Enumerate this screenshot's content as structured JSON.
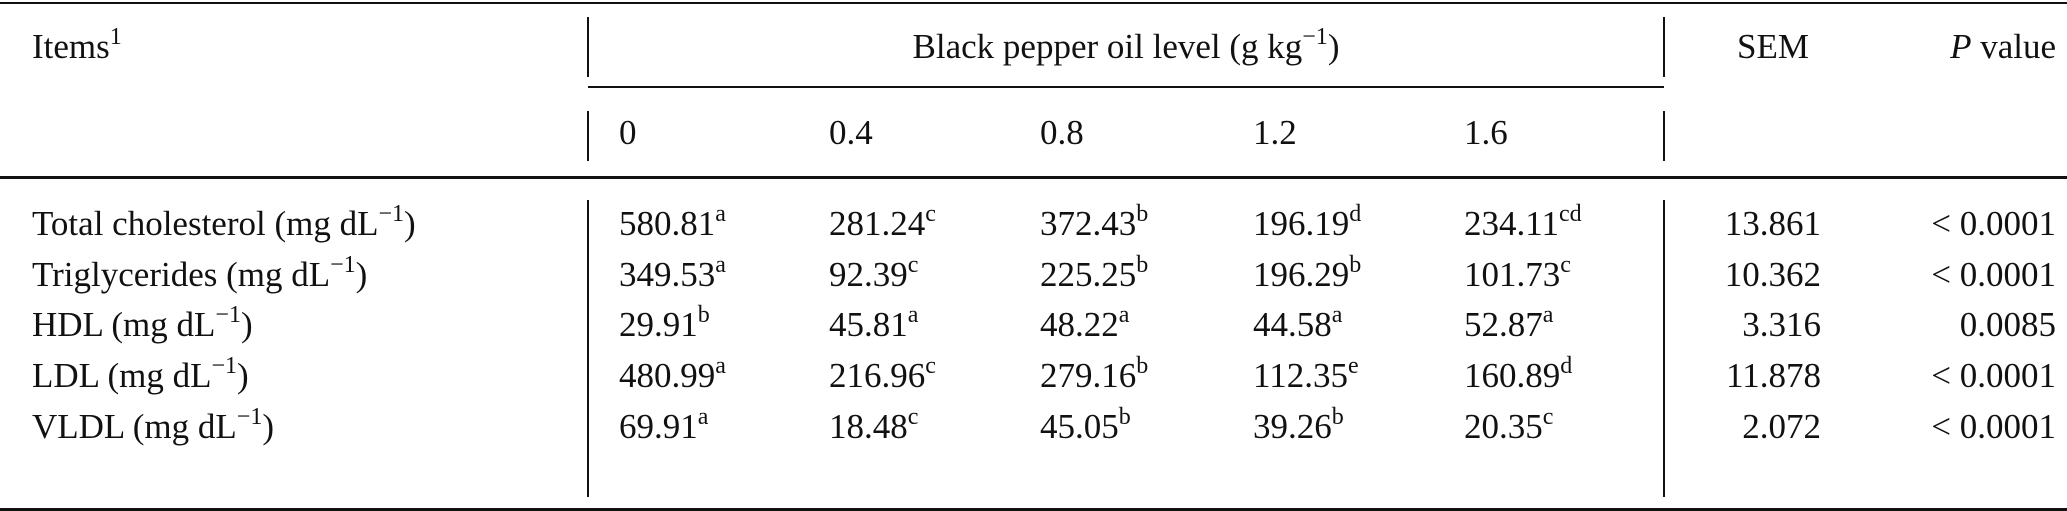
{
  "header": {
    "items_label": "Items",
    "items_footnote": "1",
    "group_label": "Black pepper oil level (g kg",
    "group_unit_exp": "−1",
    "group_close": ")",
    "sem_label": "SEM",
    "p_label_italic": "P",
    "p_label_rest": " value",
    "levels": [
      "0",
      "0.4",
      "0.8",
      "1.2",
      "1.6"
    ]
  },
  "rows": [
    {
      "item": "Total cholesterol (mg dL",
      "exp": "−1",
      "close": ")",
      "values": [
        {
          "v": "580.81",
          "s": "a"
        },
        {
          "v": "281.24",
          "s": "c"
        },
        {
          "v": "372.43",
          "s": "b"
        },
        {
          "v": "196.19",
          "s": "d"
        },
        {
          "v": "234.11",
          "s": "cd"
        }
      ],
      "sem": "13.861",
      "p": "< 0.0001"
    },
    {
      "item": "Triglycerides (mg dL",
      "exp": "−1",
      "close": ")",
      "values": [
        {
          "v": "349.53",
          "s": "a"
        },
        {
          "v": "92.39",
          "s": "c"
        },
        {
          "v": "225.25",
          "s": "b"
        },
        {
          "v": "196.29",
          "s": "b"
        },
        {
          "v": "101.73",
          "s": "c"
        }
      ],
      "sem": "10.362",
      "p": "< 0.0001"
    },
    {
      "item": "HDL (mg dL",
      "exp": "−1",
      "close": ")",
      "values": [
        {
          "v": "29.91",
          "s": "b"
        },
        {
          "v": "45.81",
          "s": "a"
        },
        {
          "v": "48.22",
          "s": "a"
        },
        {
          "v": "44.58",
          "s": "a"
        },
        {
          "v": "52.87",
          "s": "a"
        }
      ],
      "sem": "3.316",
      "p": "0.0085"
    },
    {
      "item": "LDL (mg dL",
      "exp": "−1",
      "close": ")",
      "values": [
        {
          "v": "480.99",
          "s": "a"
        },
        {
          "v": "216.96",
          "s": "c"
        },
        {
          "v": "279.16",
          "s": "b"
        },
        {
          "v": "112.35",
          "s": "e"
        },
        {
          "v": "160.89",
          "s": "d"
        }
      ],
      "sem": "11.878",
      "p": "< 0.0001"
    },
    {
      "item": "VLDL (mg dL",
      "exp": "−1",
      "close": ")",
      "values": [
        {
          "v": "69.91",
          "s": "a"
        },
        {
          "v": "18.48",
          "s": "c"
        },
        {
          "v": "45.05",
          "s": "b"
        },
        {
          "v": "39.26",
          "s": "b"
        },
        {
          "v": "20.35",
          "s": "c"
        }
      ],
      "sem": "2.072",
      "p": "< 0.0001"
    }
  ]
}
